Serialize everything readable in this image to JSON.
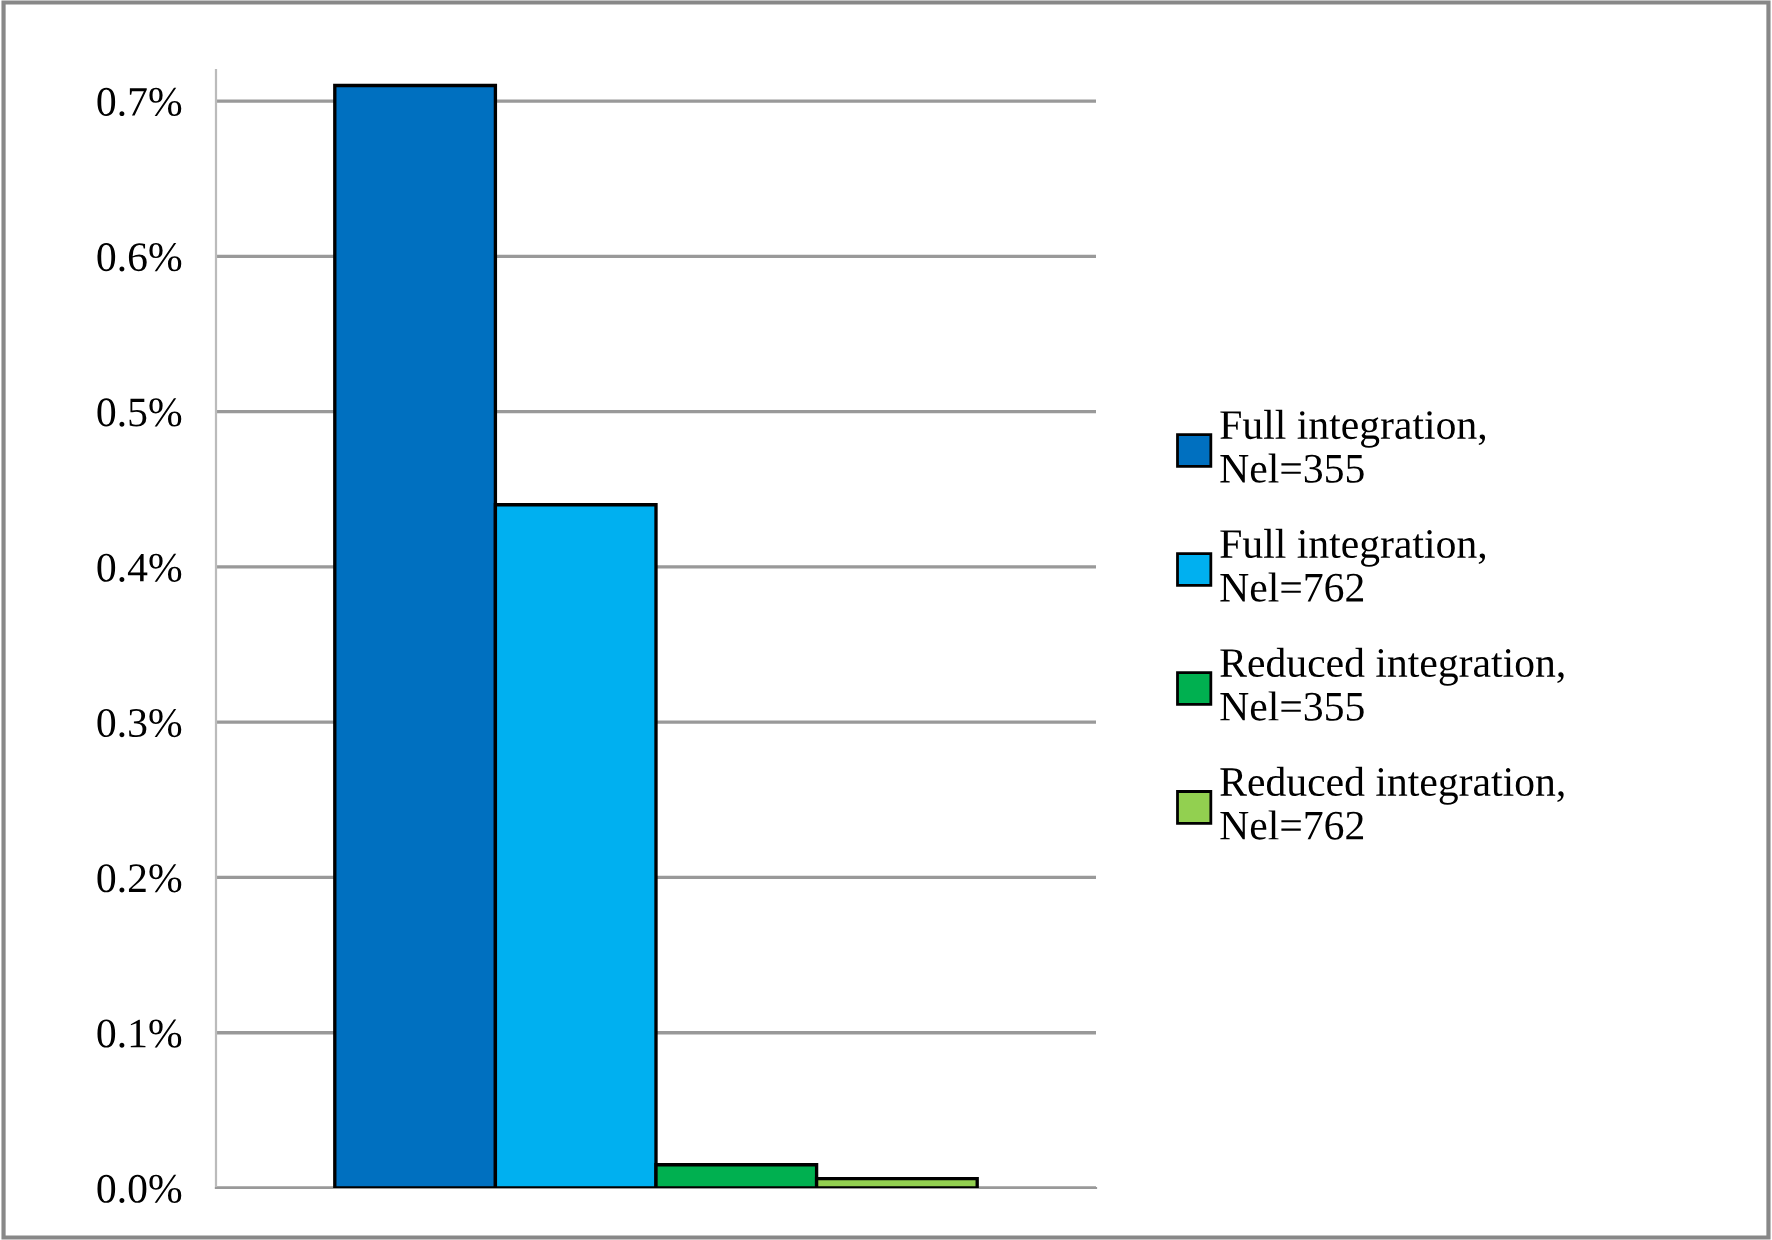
{
  "chart_data": {
    "type": "bar",
    "categories": [
      null
    ],
    "series": [
      {
        "name": "Full integration,\nNel=355",
        "color": "#0070c0",
        "values": [
          0.71
        ]
      },
      {
        "name": "Full integration,\nNel=762",
        "color": "#00b0f0",
        "values": [
          0.44
        ]
      },
      {
        "name": "Reduced integration,\nNel=355",
        "color": "#00b050",
        "values": [
          0.015
        ]
      },
      {
        "name": "Reduced integration,\nNel=762",
        "color": "#92d050",
        "values": [
          0.006
        ]
      }
    ],
    "ylim": [
      0,
      0.72
    ],
    "yticks": [
      {
        "value": 0,
        "label": "0.0%"
      },
      {
        "value": 0.1,
        "label": "0.1%"
      },
      {
        "value": 0.2,
        "label": "0.2%"
      },
      {
        "value": 0.3,
        "label": "0.3%"
      },
      {
        "value": 0.4,
        "label": "0.4%"
      },
      {
        "value": 0.5,
        "label": "0.5%"
      },
      {
        "value": 0.6,
        "label": "0.6%"
      },
      {
        "value": 0.7,
        "label": "0.7%"
      }
    ],
    "grid": "y",
    "legend": "right"
  }
}
